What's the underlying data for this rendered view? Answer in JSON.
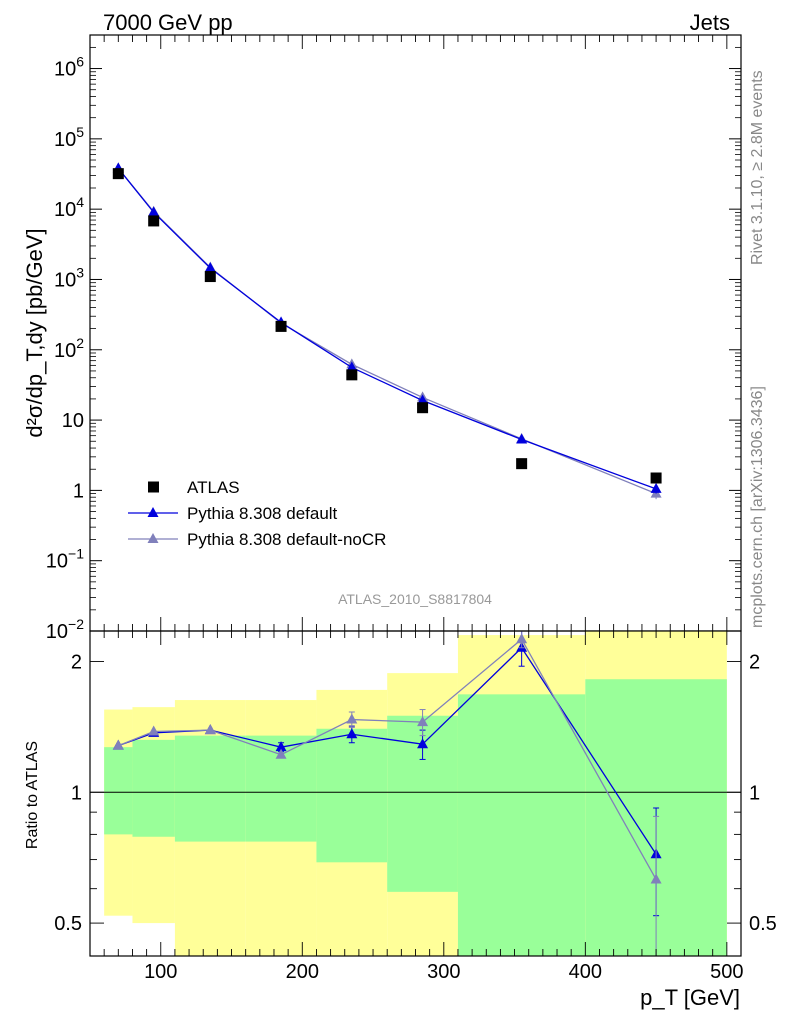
{
  "header": {
    "left": "7000 GeV pp",
    "right": "Jets"
  },
  "side_labels": {
    "rivet": "Rivet 3.1.10, ≥ 2.8M events",
    "source": "mcplots.cern.ch [arXiv:1306.3436]"
  },
  "analysis_id": "ATLAS_2010_S8817804",
  "colors": {
    "data": "#000000",
    "pythia_default": "#0000dd",
    "pythia_nocr": "#8080bb",
    "band_yellow": "#ffff99",
    "band_green": "#99ff99"
  },
  "chart_data": [
    {
      "type": "line",
      "panel": "main",
      "ylabel": "d²σ/dp_T,dy [pb/GeV]",
      "yscale": "log",
      "ylim": [
        0.01,
        3000000
      ],
      "xlim": [
        50,
        510
      ],
      "y_tick_labels": [
        "10^-2",
        "10^-1",
        "1",
        "10",
        "10^2",
        "10^3",
        "10^4",
        "10^5",
        "10^6"
      ],
      "legend_position": "lower-left",
      "series": [
        {
          "name": "ATLAS",
          "marker": "square",
          "x": [
            70,
            95,
            135,
            185,
            235,
            285,
            355,
            450
          ],
          "y": [
            32000,
            6800,
            1100,
            215,
            44,
            15,
            2.4,
            1.5
          ]
        },
        {
          "name": "Pythia 8.308 default",
          "marker": "triangle",
          "x": [
            70,
            95,
            135,
            185,
            235,
            285,
            355,
            450
          ],
          "y": [
            38000,
            9000,
            1450,
            245,
            56,
            19,
            5.3,
            1.05
          ],
          "yerr": [
            0,
            0,
            0,
            0,
            0,
            0,
            0,
            0.15
          ]
        },
        {
          "name": "Pythia 8.308 default-noCR",
          "marker": "triangle",
          "x": [
            70,
            95,
            135,
            185,
            235,
            285,
            355,
            450
          ],
          "y": [
            38000,
            9200,
            1480,
            240,
            62,
            21,
            5.4,
            0.9
          ],
          "yerr": [
            0,
            0,
            0,
            0,
            0,
            0,
            0,
            0.15
          ]
        }
      ]
    },
    {
      "type": "line",
      "panel": "ratio",
      "ylabel": "Ratio to ATLAS",
      "xlabel": "p_T [GeV]",
      "yscale": "log",
      "ylim": [
        0.42,
        2.35
      ],
      "xlim": [
        50,
        510
      ],
      "y_tick_labels": [
        "0.5",
        "1",
        "2"
      ],
      "x_tick_labels": [
        "100",
        "200",
        "300",
        "400",
        "500"
      ],
      "x_ticks": [
        100,
        200,
        300,
        400,
        500
      ],
      "bands": [
        {
          "x_low": 60,
          "x_high": 80,
          "yellow": [
            0.52,
            1.55
          ],
          "green": [
            0.8,
            1.27
          ]
        },
        {
          "x_low": 80,
          "x_high": 110,
          "yellow": [
            0.5,
            1.57
          ],
          "green": [
            0.79,
            1.32
          ]
        },
        {
          "x_low": 110,
          "x_high": 160,
          "yellow": [
            0.42,
            1.63
          ],
          "green": [
            0.77,
            1.35
          ]
        },
        {
          "x_low": 160,
          "x_high": 210,
          "yellow": [
            0.41,
            1.63
          ],
          "green": [
            0.77,
            1.35
          ]
        },
        {
          "x_low": 210,
          "x_high": 260,
          "yellow": [
            0.35,
            1.72
          ],
          "green": [
            0.69,
            1.4
          ]
        },
        {
          "x_low": 260,
          "x_high": 310,
          "yellow": [
            0.35,
            1.88
          ],
          "green": [
            0.59,
            1.5
          ]
        },
        {
          "x_low": 310,
          "x_high": 400,
          "yellow": [
            0.35,
            2.3
          ],
          "green": [
            0.35,
            1.68
          ]
        },
        {
          "x_low": 400,
          "x_high": 500,
          "yellow": [
            0.35,
            2.45
          ],
          "green": [
            0.35,
            1.82
          ]
        }
      ],
      "series": [
        {
          "name": "Pythia 8.308 default",
          "x": [
            70,
            95,
            135,
            185,
            235,
            285,
            355,
            450
          ],
          "y": [
            1.28,
            1.37,
            1.39,
            1.27,
            1.36,
            1.29,
            2.15,
            0.72
          ],
          "yerr": [
            0.0,
            0.0,
            0.0,
            0.03,
            0.06,
            0.1,
            0.2,
            0.2
          ]
        },
        {
          "name": "Pythia 8.308 default-noCR",
          "x": [
            70,
            95,
            135,
            185,
            235,
            285,
            355,
            450
          ],
          "y": [
            1.28,
            1.38,
            1.39,
            1.22,
            1.47,
            1.45,
            2.25,
            0.63
          ],
          "yerr": [
            0.0,
            0.0,
            0.0,
            0.0,
            0.06,
            0.1,
            0.1,
            0.25
          ]
        }
      ]
    }
  ]
}
